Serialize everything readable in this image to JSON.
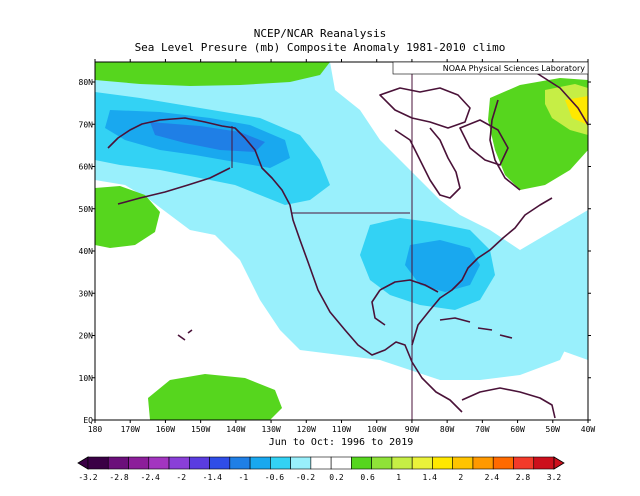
{
  "title": "NCEP/NCAR Reanalysis",
  "subtitle": "Sea Level Presure (mb) Composite Anomaly 1981-2010 climo",
  "credit": "NOAA Physical Sciences Laboratory",
  "period_label": "Jun to Oct: 1996 to 2019",
  "lat_labels": [
    "EQ",
    "10N",
    "20N",
    "30N",
    "40N",
    "50N",
    "60N",
    "70N",
    "80N"
  ],
  "lon_labels": [
    "180",
    "170W",
    "160W",
    "150W",
    "140W",
    "130W",
    "120W",
    "110W",
    "100W",
    "90W",
    "80W",
    "70W",
    "60W",
    "50W",
    "40W"
  ],
  "colorbar": {
    "labels": [
      "-3.2",
      "-2.8",
      "-2.4",
      "-2",
      "-1.4",
      "-1",
      "-0.6",
      "-0.2",
      "0.2",
      "0.6",
      "1",
      "1.4",
      "2",
      "2.4",
      "2.8",
      "3.2"
    ],
    "colors": [
      "#3a0045",
      "#6b0f7a",
      "#8c1e9a",
      "#a335c0",
      "#8a3fd8",
      "#5a3ce0",
      "#2f4de8",
      "#1f7fe6",
      "#19a8ef",
      "#33d2f4",
      "#99f0fc",
      "#ffffff",
      "#ffffff",
      "#56d61e",
      "#8fe238",
      "#c6ee45",
      "#eaf23a",
      "#ffe800",
      "#ffc400",
      "#ff9900",
      "#ff6a00",
      "#f33a2a",
      "#cc0f1c"
    ]
  },
  "colors": {
    "ocean_neutral": "#ffffff",
    "coastline": "#4a1238",
    "light_cyan": "#99f0fc",
    "cyan": "#33d2f4",
    "blue": "#19a8ef",
    "green": "#56d61e",
    "yellow": "#ffe800"
  }
}
